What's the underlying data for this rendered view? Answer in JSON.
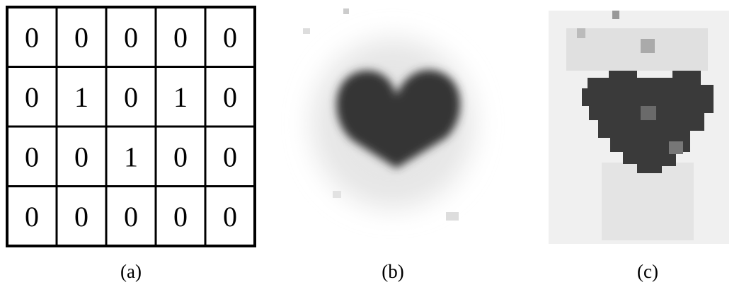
{
  "table": {
    "rows": [
      [
        0,
        0,
        0,
        0,
        0
      ],
      [
        0,
        1,
        0,
        1,
        0
      ],
      [
        0,
        0,
        1,
        0,
        0
      ],
      [
        0,
        0,
        0,
        0,
        0
      ]
    ]
  },
  "captions": [
    "(a)",
    "(b)",
    "(c)"
  ]
}
